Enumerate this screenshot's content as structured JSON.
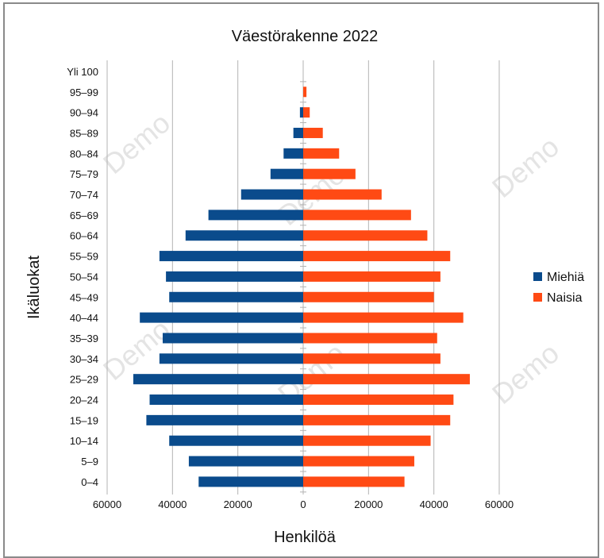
{
  "chart_data": {
    "type": "bar",
    "orientation": "horizontal",
    "layout": "population-pyramid",
    "title": "Väestörakenne 2022",
    "xlabel": "Henkilöä",
    "ylabel": "Ikäluokat",
    "categories": [
      "0–4",
      "5–9",
      "10–14",
      "15–19",
      "20–24",
      "25–29",
      "30–34",
      "35–39",
      "40–44",
      "45–49",
      "50–54",
      "55–59",
      "60–64",
      "65–69",
      "70–74",
      "75–79",
      "80–84",
      "85–89",
      "90–94",
      "95–99",
      "Yli 100"
    ],
    "series": [
      {
        "name": "Miehiä",
        "color": "#0a4b8c",
        "values": [
          32000,
          35000,
          41000,
          48000,
          47000,
          52000,
          44000,
          43000,
          50000,
          41000,
          42000,
          44000,
          36000,
          29000,
          19000,
          10000,
          6000,
          3000,
          1000,
          0,
          0
        ]
      },
      {
        "name": "Naisia",
        "color": "#ff4a14",
        "values": [
          31000,
          34000,
          39000,
          45000,
          46000,
          51000,
          42000,
          41000,
          49000,
          40000,
          42000,
          45000,
          38000,
          33000,
          24000,
          16000,
          11000,
          6000,
          2000,
          1000,
          0
        ]
      }
    ],
    "xlim": [
      -60000,
      60000
    ],
    "xticks": [
      "60000",
      "40000",
      "20000",
      "0",
      "20000",
      "40000",
      "60000"
    ],
    "grid": true,
    "legend": "right",
    "watermark": "Demo"
  }
}
